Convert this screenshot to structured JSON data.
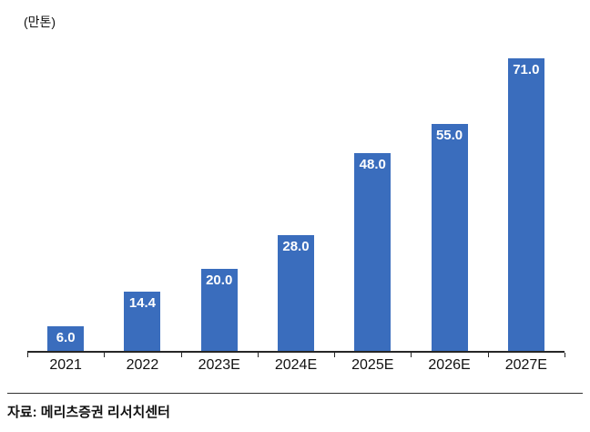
{
  "chart_data": {
    "type": "bar",
    "title": "",
    "unit_label": "(만톤)",
    "categories": [
      "2021",
      "2022",
      "2023E",
      "2024E",
      "2025E",
      "2026E",
      "2027E"
    ],
    "values": [
      6.0,
      14.4,
      20.0,
      28.0,
      48.0,
      55.0,
      71.0
    ],
    "value_labels": [
      "6.0",
      "14.4",
      "20.0",
      "28.0",
      "48.0",
      "55.0",
      "71.0"
    ],
    "xlabel": "",
    "ylabel": "",
    "ylim": [
      0,
      75
    ],
    "grid": false,
    "legend": "none",
    "bar_color": "#3A6DBD",
    "value_label_color": "#FFFFFF",
    "axis_color": "#262626"
  },
  "footer": {
    "source": "자료: 메리츠증권 리서치센터"
  }
}
